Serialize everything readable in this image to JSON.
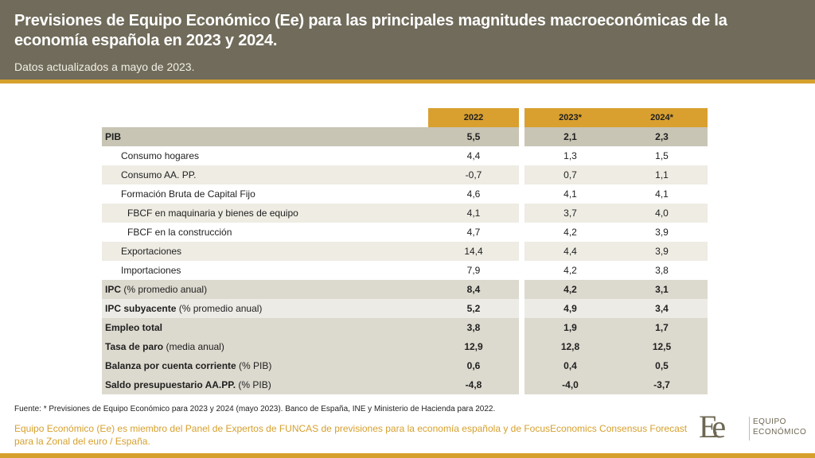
{
  "header": {
    "title": "Previsiones de Equipo Económico (Ee) para las principales magnitudes macroeconómicas de la economía española en 2023 y 2024.",
    "subtitle": "Datos actualizados a mayo de 2023."
  },
  "table": {
    "columns": [
      "2022",
      "2023*",
      "2024*"
    ],
    "rows": [
      {
        "label_bold": "PIB",
        "label_rest": "",
        "v2022": "5,5",
        "v2023": "2,1",
        "v2024": "2,3"
      },
      {
        "label_bold": "",
        "label_rest": "Consumo hogares",
        "v2022": "4,4",
        "v2023": "1,3",
        "v2024": "1,5"
      },
      {
        "label_bold": "",
        "label_rest": "Consumo AA. PP.",
        "v2022": "-0,7",
        "v2023": "0,7",
        "v2024": "1,1"
      },
      {
        "label_bold": "",
        "label_rest": "Formación Bruta de Capital Fijo",
        "v2022": "4,6",
        "v2023": "4,1",
        "v2024": "4,1"
      },
      {
        "label_bold": "",
        "label_rest": "FBCF en maquinaria y bienes de equipo",
        "v2022": "4,1",
        "v2023": "3,7",
        "v2024": "4,0"
      },
      {
        "label_bold": "",
        "label_rest": "FBCF en la construcción",
        "v2022": "4,7",
        "v2023": "4,2",
        "v2024": "3,9"
      },
      {
        "label_bold": "",
        "label_rest": "Exportaciones",
        "v2022": "14,4",
        "v2023": "4,4",
        "v2024": "3,9"
      },
      {
        "label_bold": "",
        "label_rest": "Importaciones",
        "v2022": "7,9",
        "v2023": "4,2",
        "v2024": "3,8"
      },
      {
        "label_bold": "IPC",
        "label_rest": " (% promedio anual)",
        "v2022": "8,4",
        "v2023": "4,2",
        "v2024": "3,1"
      },
      {
        "label_bold": "IPC subyacente",
        "label_rest": " (% promedio anual)",
        "v2022": "5,2",
        "v2023": "4,9",
        "v2024": "3,4"
      },
      {
        "label_bold": "Empleo total",
        "label_rest": "",
        "v2022": "3,8",
        "v2023": "1,9",
        "v2024": "1,7"
      },
      {
        "label_bold": "Tasa de paro",
        "label_rest": " (media anual)",
        "v2022": "12,9",
        "v2023": "12,8",
        "v2024": "12,5"
      },
      {
        "label_bold": "Balanza por cuenta corriente",
        "label_rest": " (% PIB)",
        "v2022": "0,6",
        "v2023": "0,4",
        "v2024": "0,5"
      },
      {
        "label_bold": "Saldo presupuestario AA.PP.",
        "label_rest": " (% PIB)",
        "v2022": "-4,8",
        "v2023": "-4,0",
        "v2024": "-3,7"
      }
    ]
  },
  "footer": {
    "source": "Fuente: * Previsiones de Equipo Económico para 2023 y 2024 (mayo 2023). Banco de España,  INE y Ministerio de Hacienda para 2022.",
    "note": "Equipo Económico (Ee) es miembro del Panel de Expertos de FUNCAS de previsiones para la economía española y de FocusEconomics Consensus Forecast para la Zonal del euro / España."
  },
  "logo": {
    "mark": "Ee",
    "line1": "EQUIPO",
    "line2": "ECONÓMICO"
  },
  "colors": {
    "header_bg": "#706b5a",
    "accent": "#d6a02d"
  }
}
